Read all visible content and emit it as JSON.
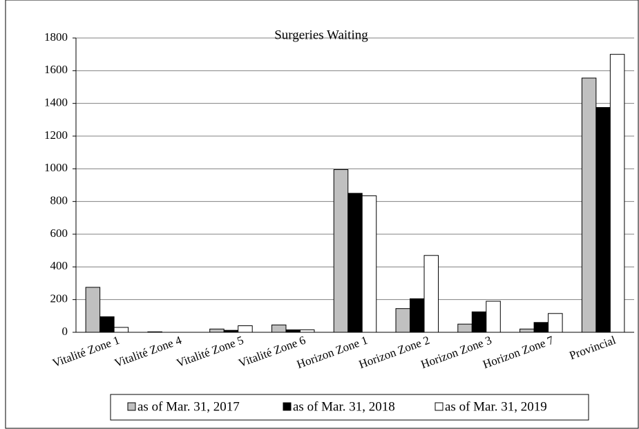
{
  "chart_data": {
    "type": "bar",
    "title": "Surgeries Waiting",
    "categories": [
      "Vitalité Zone 1",
      "Vitalité Zone 4",
      "Vitalité Zone 5",
      "Vitalité Zone 6",
      "Horizon Zone 1",
      "Horizon Zone 2",
      "Horizon Zone 3",
      "Horizon Zone 7",
      "Provincial"
    ],
    "series": [
      {
        "name": "as of Mar. 31, 2017",
        "color": "#c0c0c0",
        "values": [
          275,
          3,
          20,
          45,
          995,
          145,
          50,
          20,
          1555
        ]
      },
      {
        "name": "as of Mar. 31, 2018",
        "color": "#000000",
        "values": [
          95,
          0,
          12,
          15,
          850,
          205,
          125,
          60,
          1375
        ]
      },
      {
        "name": "as of Mar. 31, 2019",
        "color": "#ffffff",
        "values": [
          30,
          0,
          40,
          15,
          835,
          470,
          190,
          115,
          1700
        ]
      }
    ],
    "ylim": [
      0,
      1800
    ],
    "yticks": [
      0,
      200,
      400,
      600,
      800,
      1000,
      1200,
      1400,
      1600,
      1800
    ],
    "grid": true,
    "legend": "bottom"
  }
}
